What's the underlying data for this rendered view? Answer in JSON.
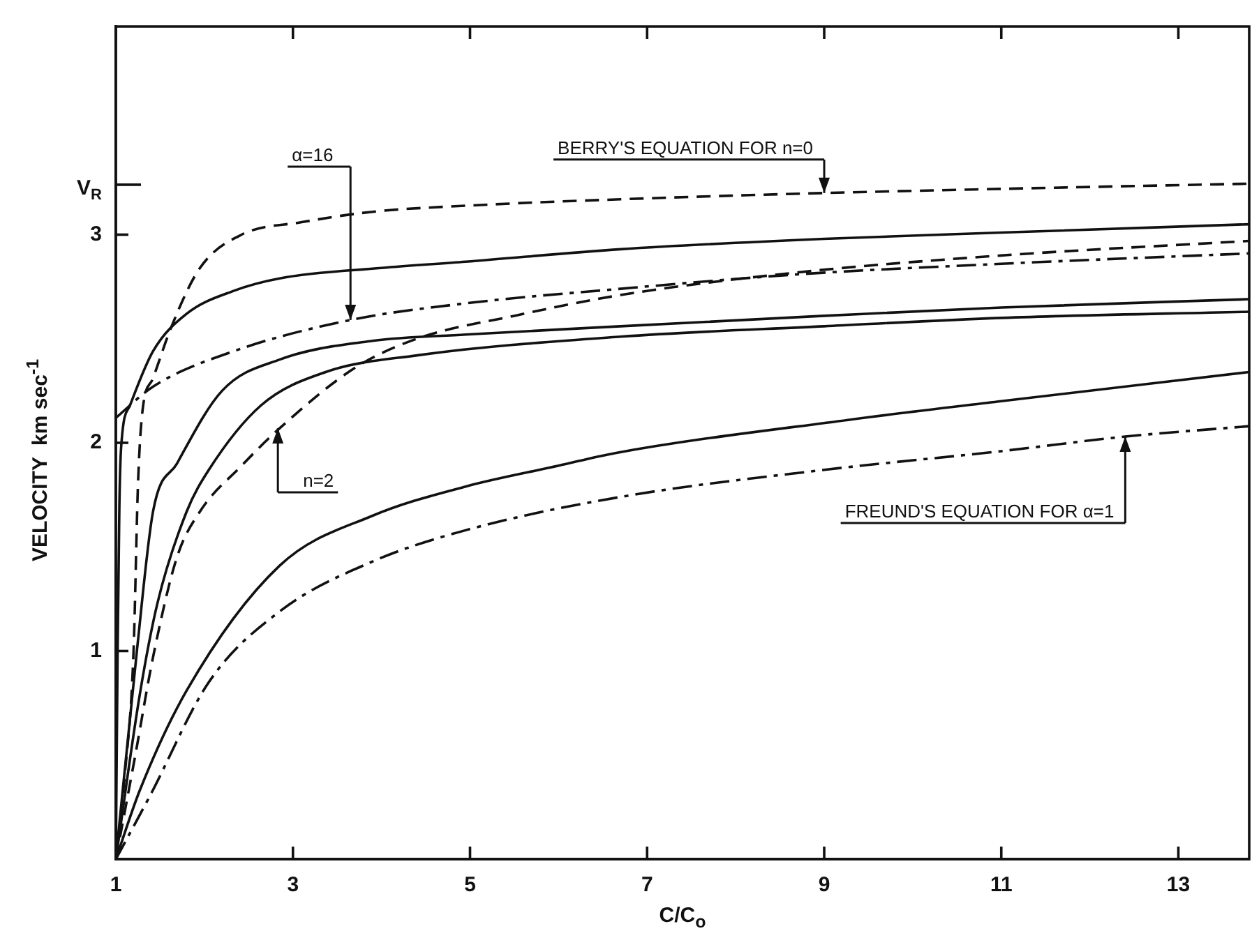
{
  "chart_data": {
    "type": "line",
    "xlabel": "C/C$_{o}$",
    "ylabel": "VELOCITY  km sec$^{-1}$",
    "xlim": [
      1,
      13.8
    ],
    "xticks": [
      1,
      3,
      5,
      7,
      9,
      11,
      13
    ],
    "ylim": [
      0,
      4
    ],
    "yticks": [
      1,
      2,
      3,
      {
        "value": 3.24,
        "label": "V$_{R}$"
      }
    ],
    "legend": false,
    "marker": "none",
    "series": [
      {
        "color": "#111111",
        "line_style": "dashed",
        "x": [
          1,
          1.1,
          1.2,
          1.25,
          1.3,
          1.42,
          1.63,
          1.95,
          2.42,
          3.1,
          3.9,
          5,
          6.7,
          9,
          11,
          13.8
        ],
        "values": [
          0,
          0.4,
          1.0,
          1.8,
          2.15,
          2.31,
          2.56,
          2.84,
          3.0,
          3.06,
          3.11,
          3.14,
          3.17,
          3.2,
          3.22,
          3.245
        ]
      },
      {
        "color": "#111111",
        "line_style": "solid",
        "x": [
          1,
          1.02,
          1.04,
          1.06,
          1.16,
          1.42,
          1.8,
          2.33,
          2.85,
          4,
          4.95,
          6.7,
          9,
          11,
          13.8
        ],
        "values": [
          0,
          1.0,
          1.7,
          1.98,
          2.18,
          2.44,
          2.62,
          2.73,
          2.79,
          2.84,
          2.87,
          2.93,
          2.98,
          3.01,
          3.05
        ]
      },
      {
        "color": "#111111",
        "line_style": "dashdot",
        "x": [
          1,
          1.42,
          2.33,
          3.65,
          4.95,
          6.7,
          8.73,
          11,
          13.8
        ],
        "values": [
          2.12,
          2.27,
          2.44,
          2.59,
          2.67,
          2.74,
          2.81,
          2.86,
          2.91
        ]
      },
      {
        "color": "#111111",
        "line_style": "dashed",
        "x": [
          1,
          1.22,
          1.42,
          1.69,
          1.95,
          2.42,
          2.85,
          3.7,
          4.4,
          5.5,
          6.7,
          8.73,
          11,
          13.8
        ],
        "values": [
          0,
          0.5,
          0.97,
          1.45,
          1.67,
          1.89,
          2.07,
          2.36,
          2.5,
          2.61,
          2.71,
          2.82,
          2.9,
          2.97
        ]
      },
      {
        "color": "#111111",
        "line_style": "solid",
        "x": [
          1,
          1.24,
          1.42,
          1.69,
          2.2,
          2.85,
          3.9,
          4.95,
          6.7,
          9,
          11,
          13.8
        ],
        "values": [
          0,
          1.01,
          1.67,
          1.9,
          2.25,
          2.4,
          2.49,
          2.52,
          2.56,
          2.61,
          2.65,
          2.69
        ]
      },
      {
        "color": "#111111",
        "line_style": "solid",
        "x": [
          1,
          1.27,
          1.47,
          1.8,
          2.05,
          2.64,
          3.37,
          4.4,
          6.7,
          9,
          11,
          13.8
        ],
        "values": [
          0,
          0.79,
          1.23,
          1.67,
          1.87,
          2.18,
          2.34,
          2.42,
          2.51,
          2.56,
          2.6,
          2.63
        ]
      },
      {
        "color": "#111111",
        "line_style": "solid",
        "x": [
          1,
          1.27,
          1.8,
          2.85,
          3.9,
          4.95,
          6,
          6.63,
          9.27,
          11,
          13.8
        ],
        "values": [
          0,
          0.33,
          0.81,
          1.41,
          1.65,
          1.79,
          1.89,
          1.95,
          2.11,
          2.2,
          2.34
        ]
      },
      {
        "color": "#111111",
        "line_style": "dashdot",
        "x": [
          1,
          1.38,
          2.05,
          2.85,
          3.9,
          4.95,
          6.7,
          9,
          11,
          12.4,
          13.8
        ],
        "values": [
          0,
          0.3,
          0.85,
          1.19,
          1.43,
          1.58,
          1.74,
          1.87,
          1.96,
          2.03,
          2.08
        ]
      }
    ],
    "annotations": [
      {
        "text": "BERRY'S EQUATION FOR n=0",
        "x": 9,
        "y": 3.2
      },
      {
        "text": "α=16",
        "x": 3.65,
        "y": 2.59
      },
      {
        "text": "n=2",
        "x": 2.83,
        "y": 2.07
      },
      {
        "text": "FREUND'S EQUATION FOR α=1",
        "x": 12.4,
        "y": 2.03
      }
    ]
  }
}
